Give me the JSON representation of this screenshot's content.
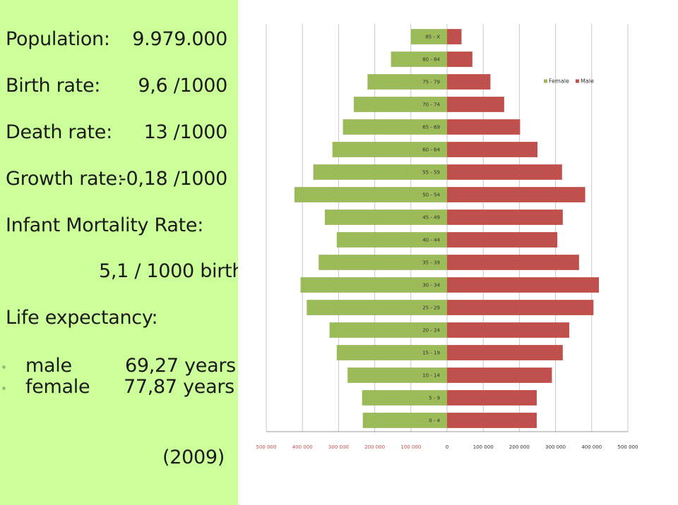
{
  "stats": {
    "population": {
      "label": "Population:",
      "value": "9.979.000"
    },
    "birth_rate": {
      "label": "Birth rate:",
      "value": "9,6 /1000"
    },
    "death_rate": {
      "label": "Death rate:",
      "value": "13 /1000"
    },
    "growth_rate": {
      "label": "Growth rate:",
      "value": "-0,18 /1000"
    },
    "infant_mortality": {
      "label": "Infant Mortality Rate:",
      "value": "5,1 / 1000 birth"
    },
    "life_expectancy": {
      "label": "Life expectancy:",
      "male": {
        "label": "male",
        "value": "69,27 years"
      },
      "female": {
        "label": "female",
        "value": "77,87 years"
      }
    },
    "year": "(2009)"
  },
  "colors": {
    "left_panel": "#ccff99",
    "female": "#9bbb59",
    "male": "#c0504d"
  },
  "chart_data": {
    "type": "bar",
    "orientation": "horizontal-population-pyramid",
    "categories": [
      "85 - X",
      "80 - 84",
      "75 - 79",
      "70 - 74",
      "65 - 69",
      "60 - 64",
      "55 - 59",
      "50 - 54",
      "45 - 49",
      "40 - 44",
      "35 - 39",
      "30 - 34",
      "25 - 29",
      "20 - 24",
      "15 - 19",
      "10 - 14",
      "5 - 9",
      "0 - 4"
    ],
    "series": [
      {
        "name": "Female",
        "values": [
          100000,
          155000,
          220000,
          258000,
          288000,
          317000,
          370000,
          422000,
          338000,
          305000,
          355000,
          405000,
          388000,
          325000,
          305000,
          275000,
          235000,
          233000
        ]
      },
      {
        "name": "Male",
        "values": [
          40000,
          70000,
          120000,
          158000,
          202000,
          250000,
          318000,
          382000,
          320000,
          305000,
          365000,
          420000,
          405000,
          338000,
          320000,
          290000,
          248000,
          248000
        ]
      }
    ],
    "x_ticks": [
      "500 000",
      "400 000",
      "300 000",
      "200 000",
      "100 000",
      "0",
      "100 000",
      "200 000",
      "300 000",
      "400 000",
      "500 000"
    ],
    "xlim": [
      -500000,
      500000
    ],
    "legend": {
      "placement": "top-right",
      "entries": [
        "Female",
        "Male"
      ]
    },
    "grid": true
  }
}
